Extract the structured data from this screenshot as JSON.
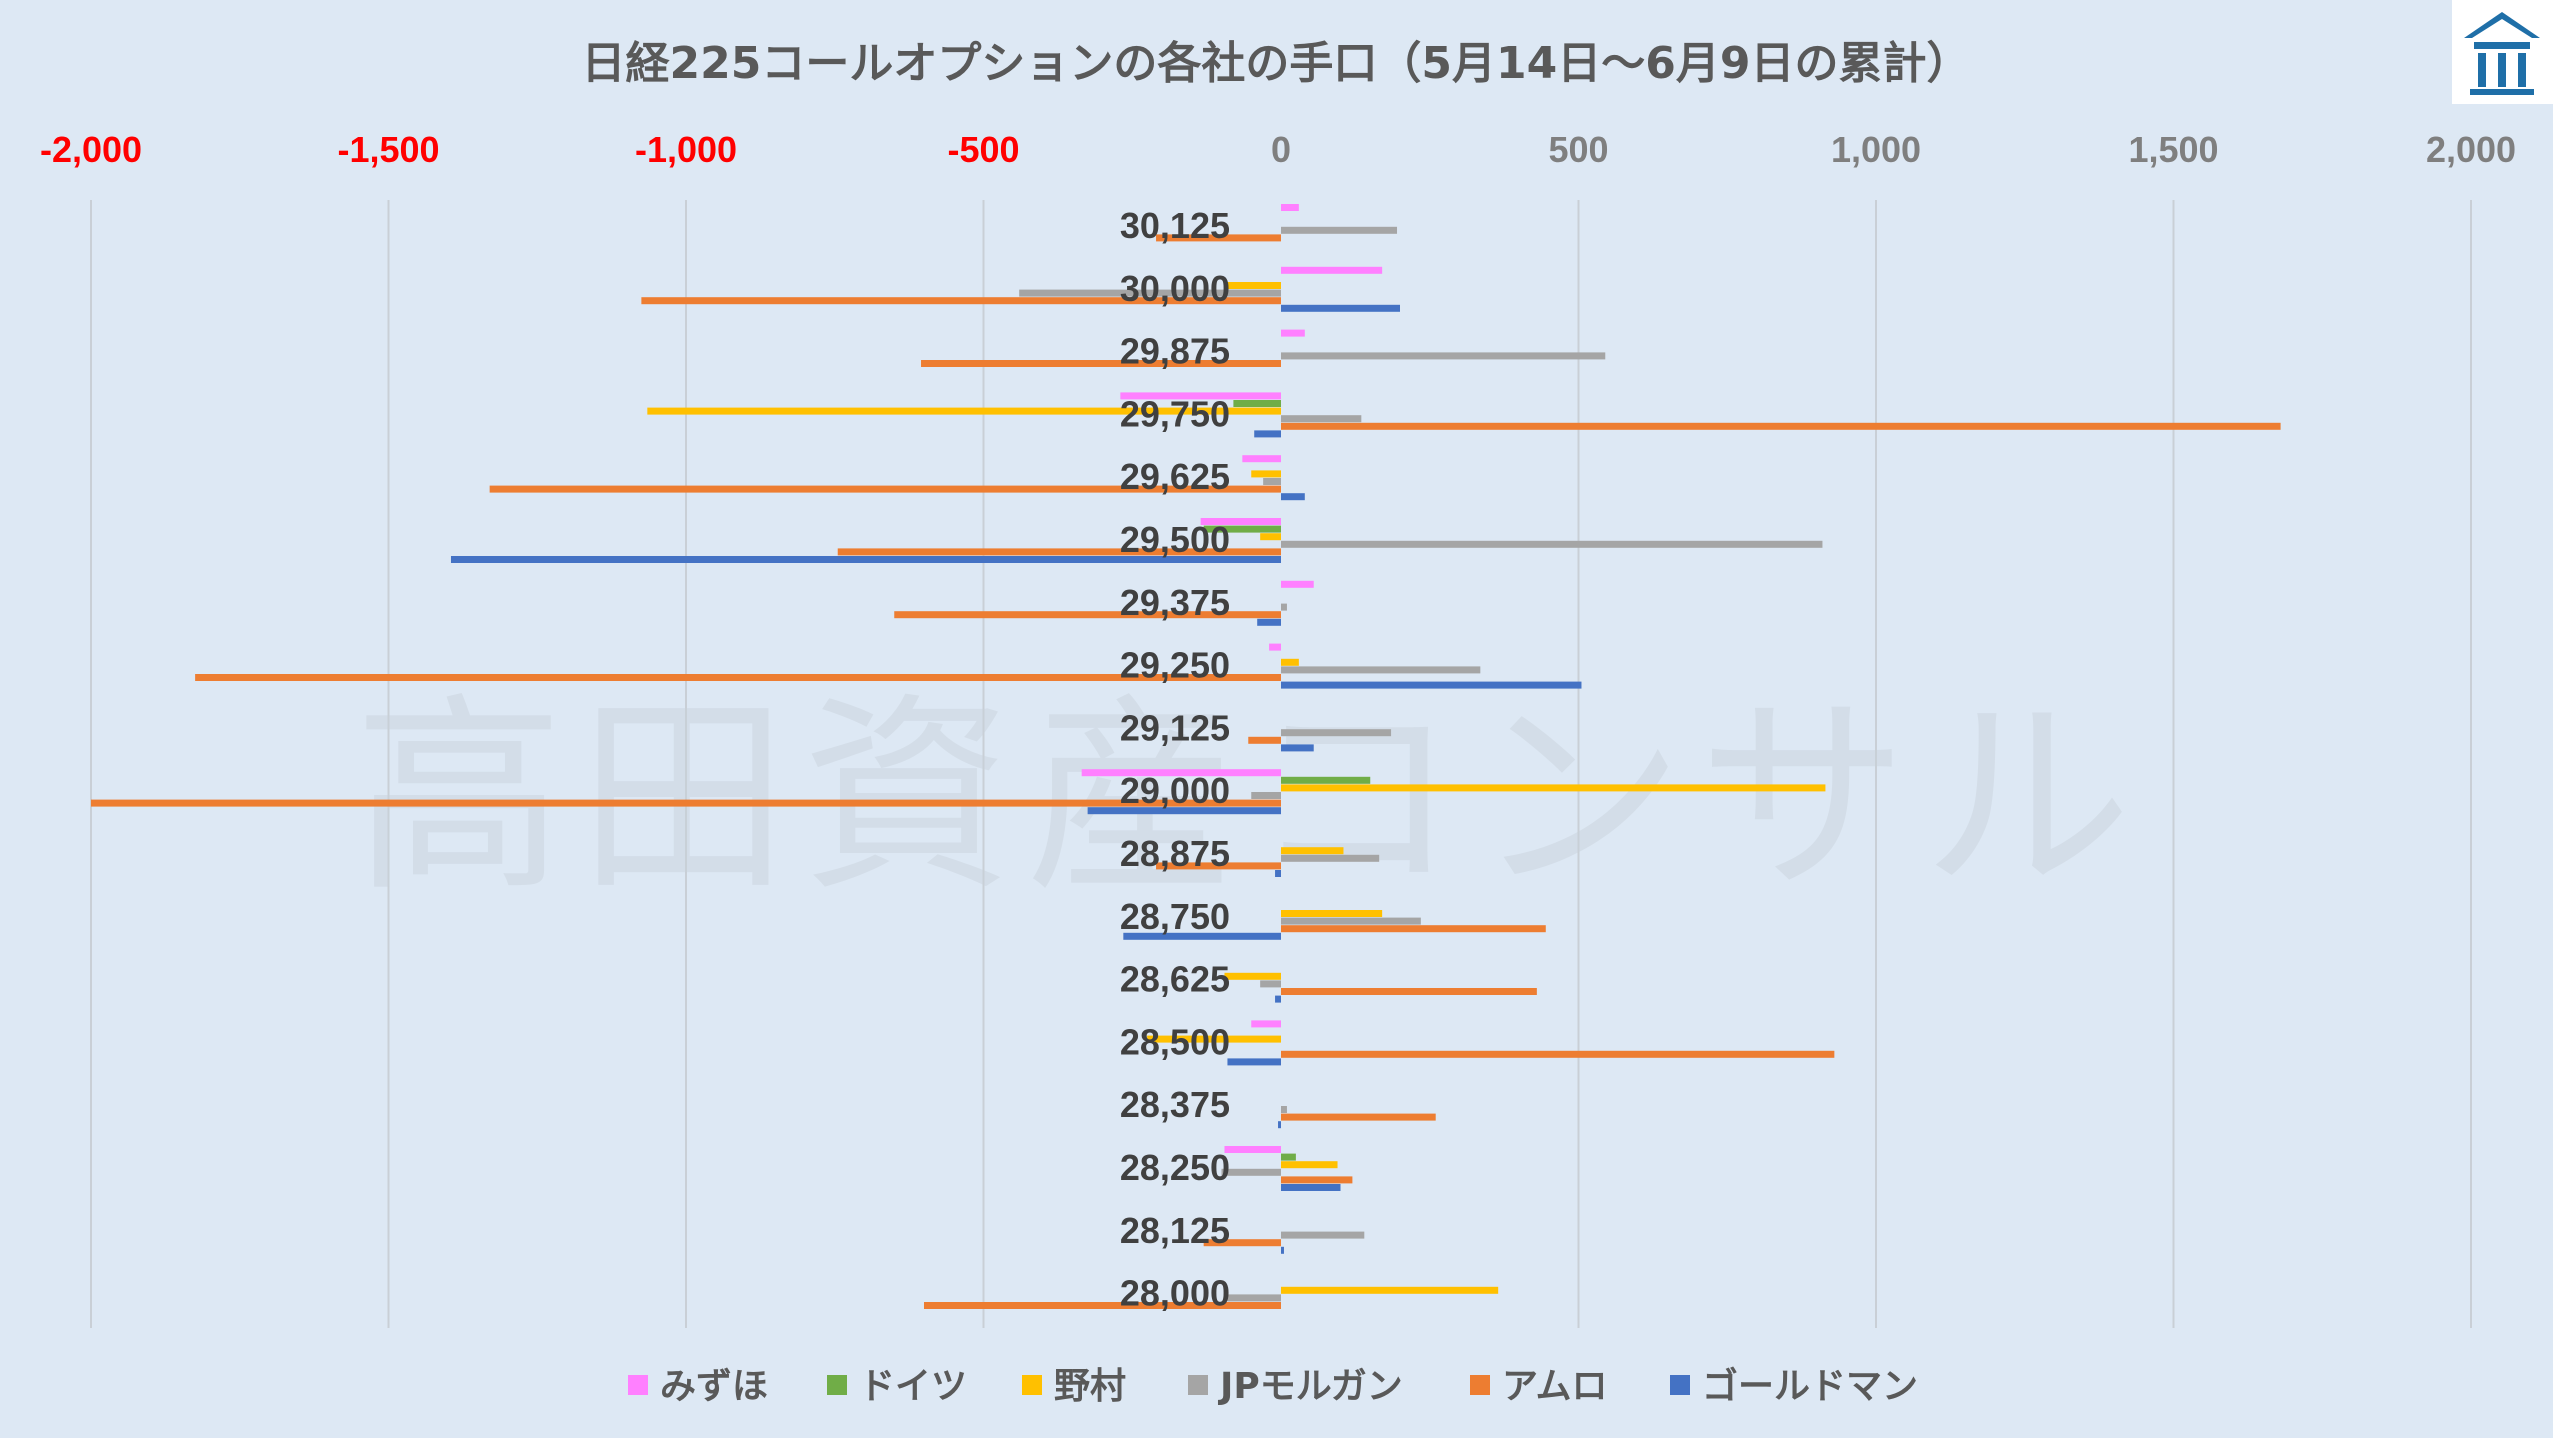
{
  "chart_data": {
    "type": "bar",
    "orientation": "horizontal",
    "title": "日経225コールオプションの各社の手口（5月14日〜6月9日の累計）",
    "watermark": "高田資産コンサル",
    "xlim": [
      -2000,
      2000
    ],
    "x_ticks": [
      -2000,
      -1500,
      -1000,
      -500,
      0,
      500,
      1000,
      1500,
      2000
    ],
    "x_tick_labels": [
      "-2,000",
      "-1,500",
      "-1,000",
      "-500",
      "0",
      "500",
      "1,000",
      "1,500",
      "2,000"
    ],
    "negative_tick_color": "#ff0000",
    "positive_tick_color": "#7f7f7f",
    "grid": "vertical",
    "legend_position": "bottom",
    "categories": [
      "30,125",
      "30,000",
      "29,875",
      "29,750",
      "29,625",
      "29,500",
      "29,375",
      "29,250",
      "29,125",
      "29,000",
      "28,875",
      "28,750",
      "28,625",
      "28,500",
      "28,375",
      "28,250",
      "28,125",
      "28,000"
    ],
    "series": [
      {
        "name": "みずほ",
        "color": "#ff80ff",
        "values": [
          30,
          170,
          40,
          -270,
          -65,
          -135,
          55,
          -20,
          0,
          -335,
          0,
          0,
          0,
          -50,
          0,
          -95,
          0,
          0
        ]
      },
      {
        "name": "ドイツ",
        "color": "#70ad47",
        "values": [
          0,
          0,
          0,
          -80,
          0,
          -130,
          0,
          0,
          0,
          150,
          0,
          0,
          0,
          0,
          0,
          25,
          0,
          0
        ]
      },
      {
        "name": "野村",
        "color": "#ffc000",
        "values": [
          0,
          -90,
          0,
          -1065,
          -50,
          -35,
          0,
          30,
          0,
          915,
          105,
          170,
          -95,
          -225,
          0,
          95,
          0,
          365
        ]
      },
      {
        "name": "JPモルガン",
        "color": "#a5a5a5",
        "values": [
          195,
          -440,
          545,
          135,
          -30,
          910,
          10,
          335,
          185,
          -50,
          165,
          235,
          -35,
          0,
          10,
          -100,
          140,
          -90
        ]
      },
      {
        "name": "アムロ",
        "color": "#ed7d31",
        "values": [
          -210,
          -1075,
          -605,
          1680,
          -1330,
          -745,
          -650,
          -1825,
          -55,
          -2000,
          -210,
          445,
          430,
          930,
          260,
          120,
          -130,
          -600
        ]
      },
      {
        "name": "ゴールドマン",
        "color": "#4472c4",
        "values": [
          0,
          200,
          0,
          -45,
          40,
          -1395,
          -40,
          505,
          55,
          -325,
          -10,
          -265,
          -10,
          -90,
          -5,
          100,
          5,
          0
        ]
      }
    ]
  },
  "logo": {
    "name": "company-logo"
  }
}
